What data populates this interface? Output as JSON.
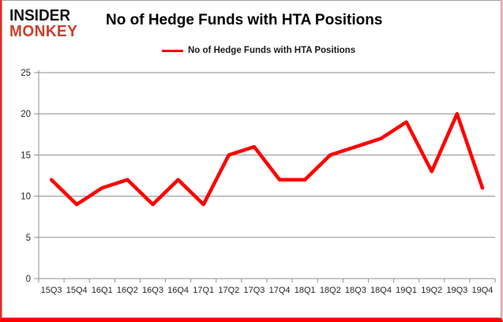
{
  "brand": {
    "line1": "INSIDER",
    "line2": "MONKEY"
  },
  "header": {
    "title": "No of Hedge Funds with HTA Positions"
  },
  "legend": {
    "label": "No of Hedge Funds with HTA Positions"
  },
  "colors": {
    "line": "#ff0000",
    "grid": "#8f8f8f",
    "axis_text": "#262626",
    "brand_red": "#c9402f",
    "border_red": "#ff0000",
    "border_pink": "#f6bcc1"
  },
  "chart_data": {
    "type": "line",
    "title": "No of Hedge Funds with HTA Positions",
    "categories": [
      "15Q3",
      "15Q4",
      "16Q1",
      "16Q2",
      "16Q3",
      "16Q4",
      "17Q1",
      "17Q2",
      "17Q3",
      "17Q4",
      "18Q1",
      "18Q2",
      "18Q3",
      "18Q4",
      "19Q1",
      "19Q2",
      "19Q3",
      "19Q4"
    ],
    "series": [
      {
        "name": "No of Hedge Funds with HTA Positions",
        "values": [
          12,
          9,
          11,
          12,
          9,
          12,
          9,
          15,
          16,
          12,
          12,
          15,
          16,
          17,
          19,
          13,
          20,
          11
        ]
      }
    ],
    "xlabel": "",
    "ylabel": "",
    "ylim": [
      0,
      25
    ],
    "yticks": [
      0,
      5,
      10,
      15,
      20,
      25
    ],
    "grid": true,
    "legend_position": "top"
  }
}
